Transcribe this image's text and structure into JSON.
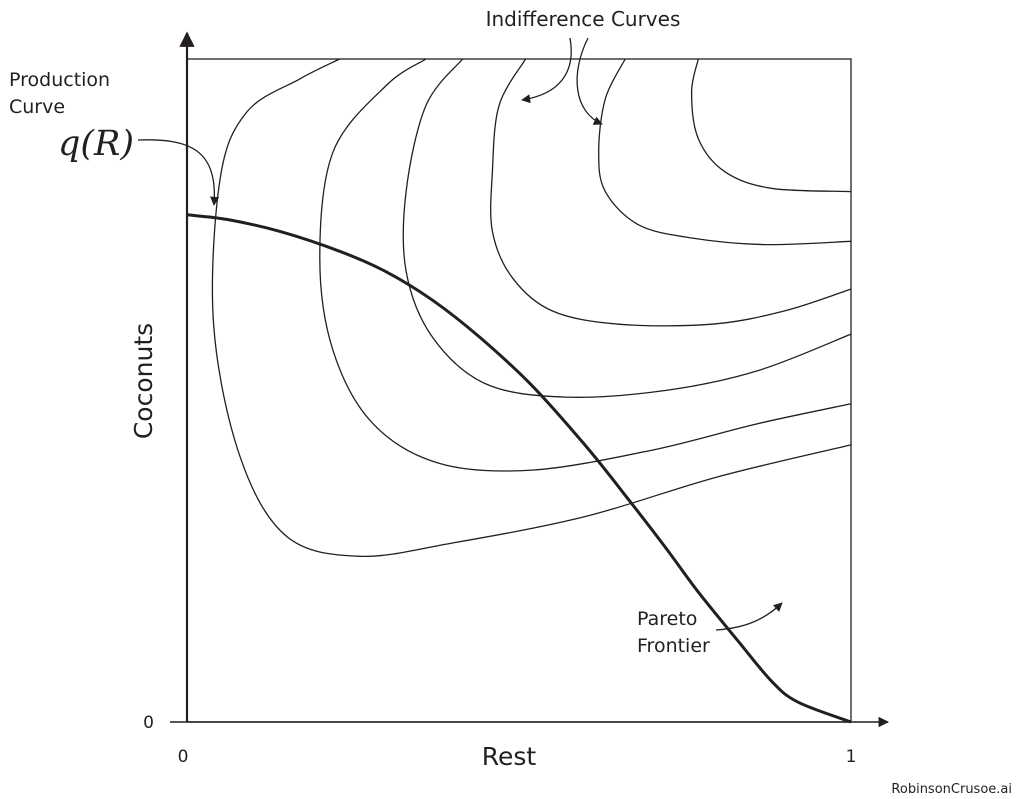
{
  "chart_data": {
    "type": "line",
    "title": "",
    "xlabel": "Rest",
    "ylabel": "Coconuts",
    "xlim": [
      0,
      1
    ],
    "ylim": [
      0,
      1
    ],
    "x_ticks": [
      "0",
      "1"
    ],
    "y_ticks": [
      "0"
    ],
    "grid": false,
    "legend": "none",
    "annotations": {
      "production_label": [
        "Production",
        "Curve"
      ],
      "production_formula": "q(R)",
      "indifference_label": "Indifference Curves",
      "pareto_label": [
        "Pareto",
        "Frontier"
      ],
      "watermark": "RobinsonCrusoe.ai"
    },
    "series": [
      {
        "role": "production-curve",
        "points": [
          [
            0.0,
            0.765
          ],
          [
            0.06,
            0.758
          ],
          [
            0.14,
            0.74
          ],
          [
            0.23,
            0.71
          ],
          [
            0.3,
            0.679
          ],
          [
            0.37,
            0.636
          ],
          [
            0.44,
            0.581
          ],
          [
            0.52,
            0.507
          ],
          [
            0.6,
            0.417
          ],
          [
            0.66,
            0.342
          ],
          [
            0.72,
            0.264
          ],
          [
            0.77,
            0.196
          ],
          [
            0.83,
            0.122
          ],
          [
            0.88,
            0.062
          ],
          [
            0.92,
            0.03
          ],
          [
            1.0,
            0.0
          ]
        ]
      },
      {
        "role": "indifference-curve",
        "points": [
          [
            0.23,
            1.0
          ],
          [
            0.17,
            0.97
          ],
          [
            0.09,
            0.92
          ],
          [
            0.05,
            0.82
          ],
          [
            0.04,
            0.6
          ],
          [
            0.08,
            0.4
          ],
          [
            0.15,
            0.28
          ],
          [
            0.26,
            0.25
          ],
          [
            0.4,
            0.27
          ],
          [
            0.6,
            0.31
          ],
          [
            0.8,
            0.37
          ],
          [
            1.0,
            0.418
          ]
        ]
      },
      {
        "role": "indifference-curve",
        "points": [
          [
            0.36,
            1.0
          ],
          [
            0.3,
            0.96
          ],
          [
            0.22,
            0.86
          ],
          [
            0.2,
            0.7
          ],
          [
            0.22,
            0.56
          ],
          [
            0.28,
            0.45
          ],
          [
            0.38,
            0.39
          ],
          [
            0.52,
            0.38
          ],
          [
            0.7,
            0.41
          ],
          [
            0.86,
            0.45
          ],
          [
            1.0,
            0.48
          ]
        ]
      },
      {
        "role": "indifference-curve",
        "points": [
          [
            0.415,
            1.0
          ],
          [
            0.36,
            0.93
          ],
          [
            0.33,
            0.8
          ],
          [
            0.33,
            0.68
          ],
          [
            0.37,
            0.58
          ],
          [
            0.45,
            0.51
          ],
          [
            0.57,
            0.49
          ],
          [
            0.72,
            0.5
          ],
          [
            0.86,
            0.53
          ],
          [
            1.0,
            0.585
          ]
        ]
      },
      {
        "role": "indifference-curve",
        "points": [
          [
            0.51,
            1.0
          ],
          [
            0.47,
            0.93
          ],
          [
            0.46,
            0.83
          ],
          [
            0.46,
            0.74
          ],
          [
            0.49,
            0.67
          ],
          [
            0.55,
            0.62
          ],
          [
            0.65,
            0.6
          ],
          [
            0.79,
            0.6
          ],
          [
            0.9,
            0.62
          ],
          [
            1.0,
            0.653
          ]
        ]
      },
      {
        "role": "indifference-curve",
        "points": [
          [
            0.66,
            1.0
          ],
          [
            0.63,
            0.94
          ],
          [
            0.62,
            0.86
          ],
          [
            0.63,
            0.8
          ],
          [
            0.68,
            0.75
          ],
          [
            0.76,
            0.73
          ],
          [
            0.87,
            0.72
          ],
          [
            1.0,
            0.725
          ]
        ]
      },
      {
        "role": "indifference-curve",
        "points": [
          [
            0.77,
            1.0
          ],
          [
            0.76,
            0.95
          ],
          [
            0.77,
            0.88
          ],
          [
            0.81,
            0.83
          ],
          [
            0.88,
            0.805
          ],
          [
            1.0,
            0.8
          ]
        ]
      }
    ]
  }
}
